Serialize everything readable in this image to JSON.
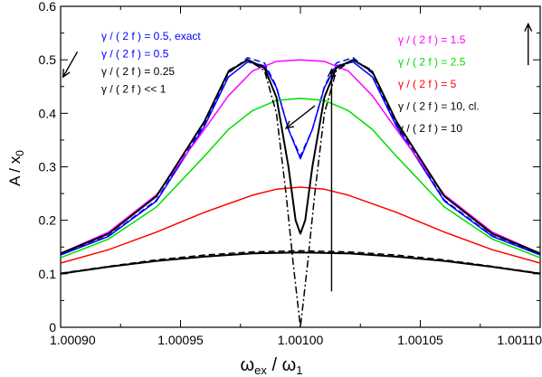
{
  "chart_data": {
    "type": "line",
    "xlabel_main": "ω",
    "xlabel_main_sub": "ex",
    "xlabel_sep": " / ω",
    "xlabel_sep_sub": "1",
    "ylabel_main": "A / x",
    "ylabel_sub": "0",
    "xlim": [
      1.0009,
      1.0011
    ],
    "ylim": [
      0,
      0.6
    ],
    "x_ticks": [
      "1.00090",
      "1.00095",
      "1.00100",
      "1.00105",
      "1.00110"
    ],
    "x_tick_values": [
      1.0009,
      1.00095,
      1.001,
      1.00105,
      1.0011
    ],
    "y_ticks": [
      "0",
      "0.1",
      "0.2",
      "0.3",
      "0.4",
      "0.5",
      "0.6"
    ],
    "y_tick_values": [
      0,
      0.1,
      0.2,
      0.3,
      0.4,
      0.5,
      0.6
    ],
    "grid": false,
    "legend_left": [
      {
        "text": "γ / ( 2 f ) = 0.5, exact",
        "color": "#0000ff"
      },
      {
        "text": "γ / ( 2 f ) = 0.5",
        "color": "#0000ff"
      },
      {
        "text": "γ / ( 2 f ) = 0.25",
        "color": "#000000"
      },
      {
        "text": "γ / ( 2 f )  << 1",
        "color": "#000000"
      }
    ],
    "legend_right": [
      {
        "text": "γ / ( 2 f ) = 1.5",
        "color": "#ff00ff"
      },
      {
        "text": "γ / ( 2 f ) = 2.5",
        "color": "#00dd00"
      },
      {
        "text": "γ / ( 2 f ) = 5",
        "color": "#ff0000"
      },
      {
        "text": "γ / ( 2 f ) = 10, cl.",
        "color": "#000000"
      },
      {
        "text": "γ / ( 2 f ) = 10",
        "color": "#000000"
      }
    ],
    "series": [
      {
        "style": "dashed",
        "color": "#0000ff",
        "points": [
          [
            1.0009,
            0.136
          ],
          [
            1.00092,
            0.171
          ],
          [
            1.00094,
            0.238
          ],
          [
            1.00096,
            0.38
          ],
          [
            1.00097,
            0.475
          ],
          [
            1.000978,
            0.504
          ],
          [
            1.000985,
            0.494
          ],
          [
            1.00099,
            0.45
          ],
          [
            1.000995,
            0.37
          ],
          [
            1.001,
            0.32
          ],
          [
            1.001005,
            0.37
          ],
          [
            1.00101,
            0.45
          ],
          [
            1.001015,
            0.494
          ],
          [
            1.001022,
            0.504
          ],
          [
            1.00103,
            0.475
          ],
          [
            1.00104,
            0.38
          ],
          [
            1.00106,
            0.238
          ],
          [
            1.00108,
            0.171
          ],
          [
            1.0011,
            0.136
          ]
        ]
      },
      {
        "style": "solid",
        "color": "#0000ff",
        "points": [
          [
            1.0009,
            0.135
          ],
          [
            1.00092,
            0.17
          ],
          [
            1.00094,
            0.236
          ],
          [
            1.00096,
            0.376
          ],
          [
            1.00097,
            0.468
          ],
          [
            1.000978,
            0.496
          ],
          [
            1.000985,
            0.489
          ],
          [
            1.00099,
            0.448
          ],
          [
            1.000995,
            0.37
          ],
          [
            1.001,
            0.315
          ],
          [
            1.001005,
            0.37
          ],
          [
            1.00101,
            0.448
          ],
          [
            1.001015,
            0.489
          ],
          [
            1.001022,
            0.496
          ],
          [
            1.00103,
            0.468
          ],
          [
            1.00104,
            0.376
          ],
          [
            1.00106,
            0.236
          ],
          [
            1.00108,
            0.17
          ],
          [
            1.0011,
            0.135
          ]
        ]
      },
      {
        "style": "solid",
        "color": "#ff00ff",
        "points": [
          [
            1.0009,
            0.138
          ],
          [
            1.00092,
            0.178
          ],
          [
            1.00094,
            0.248
          ],
          [
            1.00096,
            0.37
          ],
          [
            1.00097,
            0.433
          ],
          [
            1.00098,
            0.479
          ],
          [
            1.00099,
            0.497
          ],
          [
            1.001,
            0.5
          ],
          [
            1.00101,
            0.497
          ],
          [
            1.00102,
            0.479
          ],
          [
            1.00103,
            0.433
          ],
          [
            1.00104,
            0.37
          ],
          [
            1.00106,
            0.248
          ],
          [
            1.00108,
            0.178
          ],
          [
            1.0011,
            0.138
          ]
        ]
      },
      {
        "style": "solid",
        "color": "#00dd00",
        "points": [
          [
            1.0009,
            0.13
          ],
          [
            1.00092,
            0.165
          ],
          [
            1.00094,
            0.225
          ],
          [
            1.00096,
            0.32
          ],
          [
            1.00097,
            0.37
          ],
          [
            1.00098,
            0.405
          ],
          [
            1.00099,
            0.424
          ],
          [
            1.001,
            0.428
          ],
          [
            1.00101,
            0.424
          ],
          [
            1.00102,
            0.405
          ],
          [
            1.00103,
            0.37
          ],
          [
            1.00104,
            0.32
          ],
          [
            1.00106,
            0.225
          ],
          [
            1.00108,
            0.165
          ],
          [
            1.0011,
            0.13
          ]
        ]
      },
      {
        "style": "solid",
        "color": "#ff0000",
        "points": [
          [
            1.0009,
            0.12
          ],
          [
            1.00092,
            0.145
          ],
          [
            1.00094,
            0.178
          ],
          [
            1.00096,
            0.215
          ],
          [
            1.00098,
            0.247
          ],
          [
            1.00099,
            0.258
          ],
          [
            1.001,
            0.262
          ],
          [
            1.00101,
            0.258
          ],
          [
            1.00102,
            0.247
          ],
          [
            1.00104,
            0.215
          ],
          [
            1.00106,
            0.178
          ],
          [
            1.00108,
            0.145
          ],
          [
            1.0011,
            0.12
          ]
        ]
      },
      {
        "style": "solid",
        "color": "#000000",
        "width": 2,
        "points": [
          [
            1.0009,
            0.138
          ],
          [
            1.00092,
            0.175
          ],
          [
            1.00094,
            0.245
          ],
          [
            1.00096,
            0.385
          ],
          [
            1.00097,
            0.478
          ],
          [
            1.000978,
            0.5
          ],
          [
            1.000985,
            0.485
          ],
          [
            1.00099,
            0.43
          ],
          [
            1.000995,
            0.3
          ],
          [
            1.000998,
            0.2
          ],
          [
            1.001,
            0.175
          ],
          [
            1.001002,
            0.2
          ],
          [
            1.001005,
            0.3
          ],
          [
            1.00101,
            0.43
          ],
          [
            1.001015,
            0.485
          ],
          [
            1.001022,
            0.5
          ],
          [
            1.00103,
            0.478
          ],
          [
            1.00104,
            0.385
          ],
          [
            1.00106,
            0.245
          ],
          [
            1.00108,
            0.175
          ],
          [
            1.0011,
            0.138
          ]
        ]
      },
      {
        "style": "dashdot",
        "color": "#000000",
        "points": [
          [
            1.00097,
            0.48
          ],
          [
            1.000978,
            0.5
          ],
          [
            1.000985,
            0.48
          ],
          [
            1.00099,
            0.4
          ],
          [
            1.000994,
            0.25
          ],
          [
            1.000997,
            0.12
          ],
          [
            1.000999,
            0.04
          ],
          [
            1.001,
            0.0
          ],
          [
            1.001001,
            0.04
          ],
          [
            1.001003,
            0.12
          ],
          [
            1.001006,
            0.25
          ],
          [
            1.00101,
            0.4
          ],
          [
            1.001015,
            0.48
          ],
          [
            1.001022,
            0.5
          ],
          [
            1.00103,
            0.48
          ]
        ]
      },
      {
        "style": "solid",
        "color": "#000000",
        "width": 2,
        "points": [
          [
            1.0009,
            0.1
          ],
          [
            1.00092,
            0.113
          ],
          [
            1.00094,
            0.124
          ],
          [
            1.00096,
            0.132
          ],
          [
            1.00098,
            0.138
          ],
          [
            1.001,
            0.14
          ],
          [
            1.00102,
            0.138
          ],
          [
            1.00104,
            0.132
          ],
          [
            1.00106,
            0.124
          ],
          [
            1.00108,
            0.113
          ],
          [
            1.0011,
            0.1
          ]
        ]
      },
      {
        "style": "dashed",
        "color": "#000000",
        "points": [
          [
            1.0009,
            0.101
          ],
          [
            1.00092,
            0.114
          ],
          [
            1.00094,
            0.126
          ],
          [
            1.00096,
            0.135
          ],
          [
            1.00098,
            0.141
          ],
          [
            1.001,
            0.143
          ],
          [
            1.00102,
            0.141
          ],
          [
            1.00104,
            0.135
          ],
          [
            1.00106,
            0.126
          ],
          [
            1.00108,
            0.114
          ],
          [
            1.0011,
            0.101
          ]
        ]
      }
    ],
    "arrows": [
      {
        "from": [
          1.000907,
          0.515
        ],
        "to": [
          1.000901,
          0.468
        ]
      },
      {
        "from": [
          1.001006,
          0.414
        ],
        "to": [
          1.000994,
          0.372
        ]
      },
      {
        "from": [
          1.001013,
          0.067
        ],
        "to": [
          1.001013,
          0.482
        ]
      },
      {
        "from": [
          1.001095,
          0.49
        ],
        "to": [
          1.001095,
          0.567
        ]
      }
    ]
  }
}
